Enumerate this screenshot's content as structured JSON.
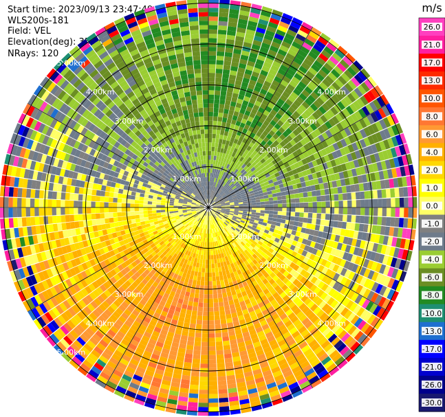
{
  "header": {
    "start_time": "Start time: 2023/09/13 23:47:49",
    "instrument": "WLS200s-181",
    "field": "Field: VEL",
    "elevation": "Elevation(deg): 35.30",
    "nrays": "NRays: 120"
  },
  "chart_data": {
    "type": "heatmap",
    "projection": "polar-ppi",
    "field": "VEL",
    "units": "m/s",
    "nrays": 120,
    "range_rings_km": [
      1,
      2,
      3,
      4,
      5
    ],
    "ring_labels": [
      "1.00km",
      "2.00km",
      "3.00km",
      "4.00km",
      "5.00km"
    ],
    "max_range_km": 5.1,
    "colorbar": {
      "title": "m/s",
      "tick_labels": [
        "26.0",
        "21.0",
        "17.0",
        "13.0",
        "10.0",
        "8.0",
        "6.0",
        "4.0",
        "2.0",
        "1.0",
        "0.0",
        "-1.0",
        "-2.0",
        "-4.0",
        "-6.0",
        "-8.0",
        "-10.0",
        "-13.0",
        "-17.0",
        "-21.0",
        "-26.0",
        "-30.0"
      ],
      "colors": [
        "#ff3fbf",
        "#ff1f9f",
        "#ff0000",
        "#ff2a00",
        "#ff5500",
        "#ff7733",
        "#ff9933",
        "#ffb000",
        "#ffd800",
        "#ffff00",
        "#ffff66",
        "#808080",
        "#6e7b8b",
        "#9acd32",
        "#6b8e23",
        "#228b22",
        "#1e8f72",
        "#1e6fd0",
        "#0000ff",
        "#0000cd",
        "#00008b",
        "#191970"
      ]
    }
  }
}
